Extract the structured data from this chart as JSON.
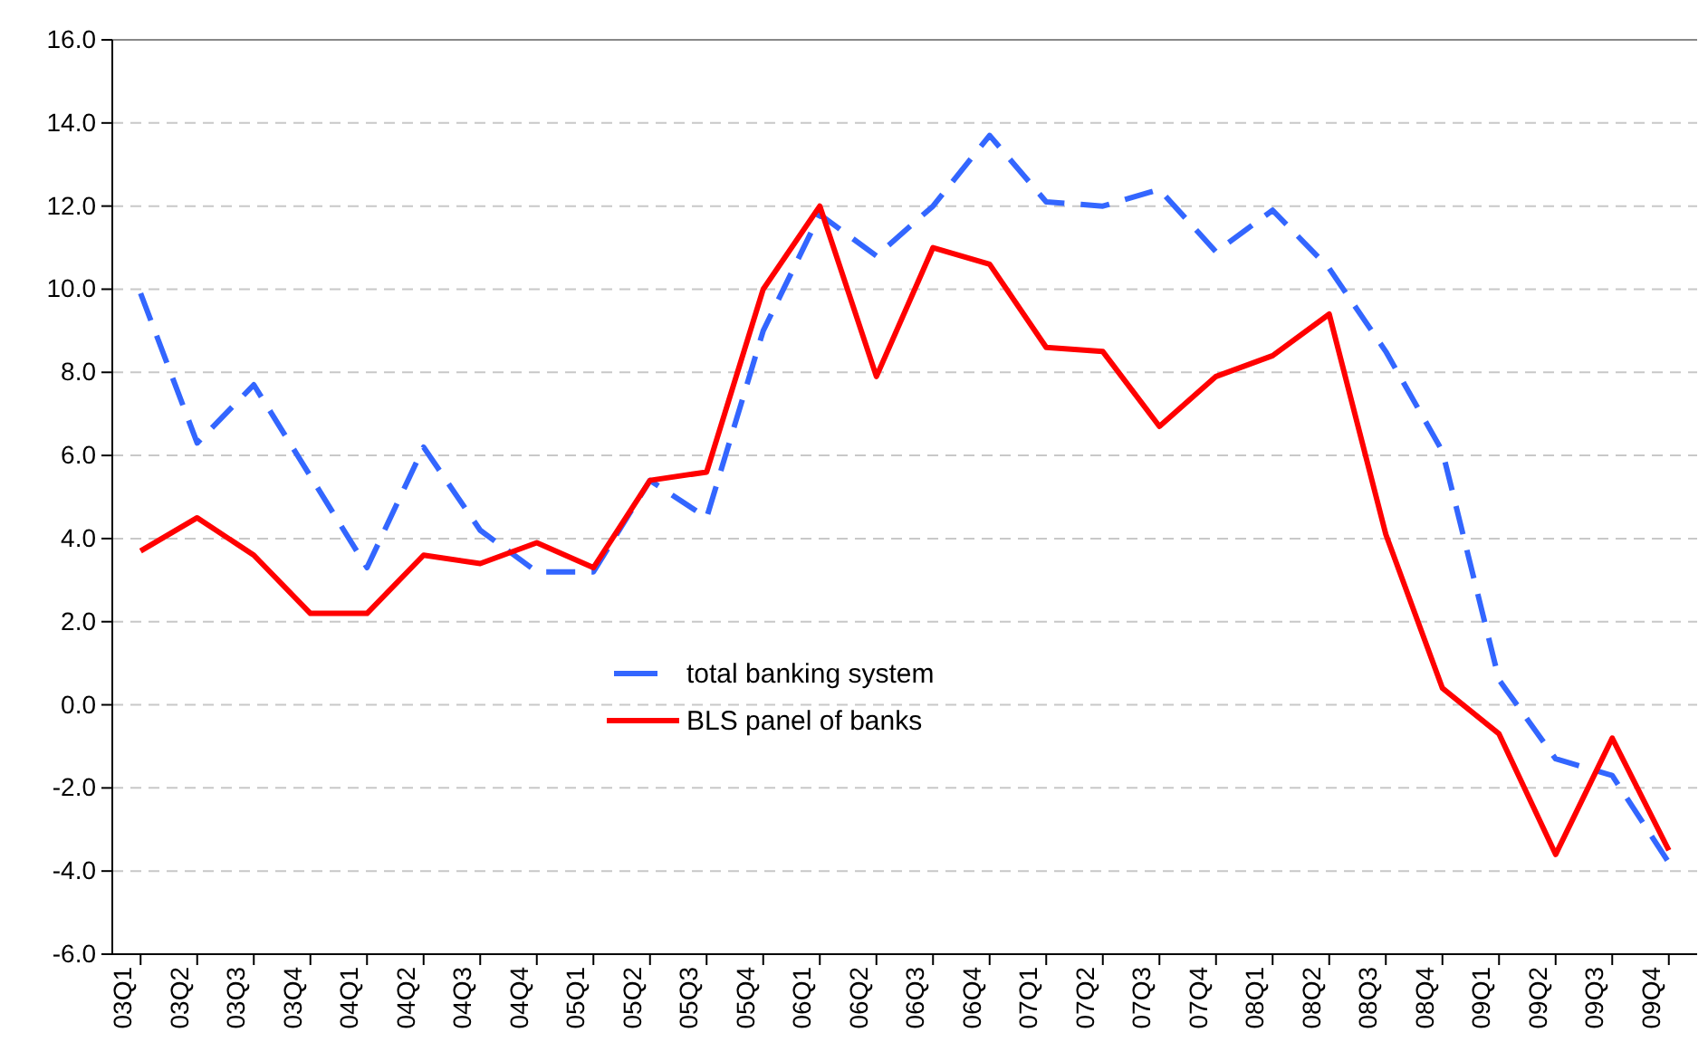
{
  "chart_data": {
    "type": "line",
    "categories": [
      "03Q1",
      "03Q2",
      "03Q3",
      "03Q4",
      "04Q1",
      "04Q2",
      "04Q3",
      "04Q4",
      "05Q1",
      "05Q2",
      "05Q3",
      "05Q4",
      "06Q1",
      "06Q2",
      "06Q3",
      "06Q4",
      "07Q1",
      "07Q2",
      "07Q3",
      "07Q4",
      "08Q1",
      "08Q2",
      "08Q3",
      "08Q4",
      "09Q1",
      "09Q2",
      "09Q3",
      "09Q4"
    ],
    "series": [
      {
        "name": "total banking system",
        "color": "#3366ff",
        "line_style": "dashed",
        "values": [
          9.9,
          6.3,
          7.7,
          5.5,
          3.3,
          6.2,
          4.2,
          3.2,
          3.2,
          5.4,
          4.5,
          9.0,
          11.8,
          10.8,
          12.0,
          13.7,
          12.1,
          12.0,
          12.4,
          10.9,
          11.9,
          10.5,
          8.5,
          6.1,
          0.6,
          -1.3,
          -1.7,
          -3.8
        ]
      },
      {
        "name": "BLS panel of banks",
        "color": "#ff0000",
        "line_style": "solid",
        "values": [
          3.7,
          4.5,
          3.6,
          2.2,
          2.2,
          3.6,
          3.4,
          3.9,
          3.3,
          5.4,
          5.6,
          10.0,
          12.0,
          7.9,
          11.0,
          10.6,
          8.6,
          8.5,
          6.7,
          7.9,
          8.4,
          9.4,
          4.1,
          0.4,
          -0.7,
          -3.6,
          -0.8,
          -3.5
        ]
      }
    ],
    "ylim": [
      -6,
      16
    ],
    "yticks": [
      {
        "value": -6,
        "label": "-6.0"
      },
      {
        "value": -4,
        "label": "-4.0"
      },
      {
        "value": -2,
        "label": "-2.0"
      },
      {
        "value": 0,
        "label": "0.0"
      },
      {
        "value": 2,
        "label": "2.0"
      },
      {
        "value": 4,
        "label": "4.0"
      },
      {
        "value": 6,
        "label": "6.0"
      },
      {
        "value": 8,
        "label": "8.0"
      },
      {
        "value": 10,
        "label": "10.0"
      },
      {
        "value": 12,
        "label": "12.0"
      },
      {
        "value": 14,
        "label": "14.0"
      },
      {
        "value": 16,
        "label": "16.0"
      }
    ],
    "grid": "y",
    "legend": "center",
    "marker": "none"
  }
}
